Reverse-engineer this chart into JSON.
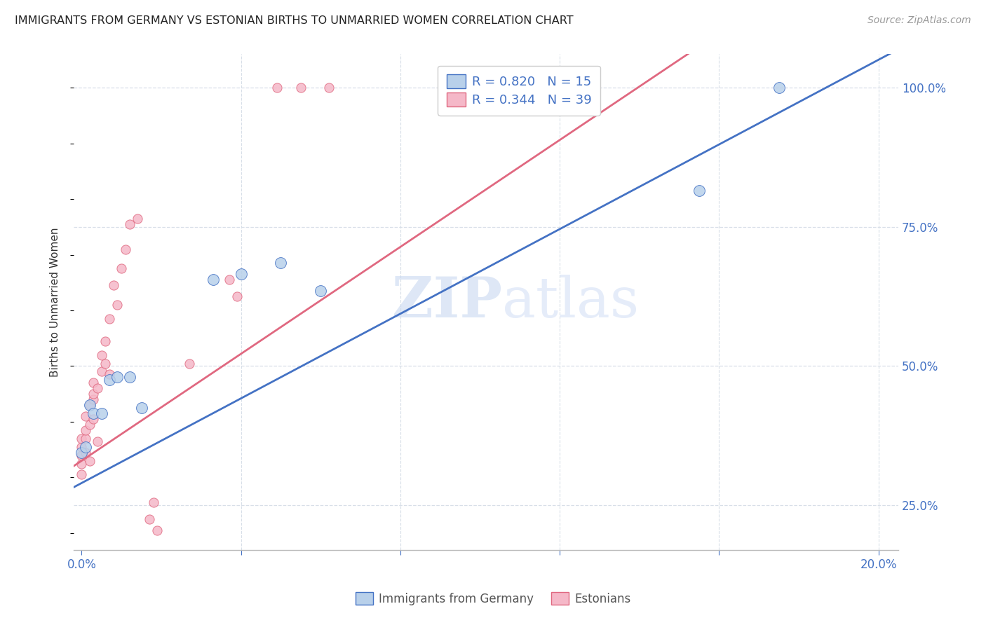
{
  "title": "IMMIGRANTS FROM GERMANY VS ESTONIAN BIRTHS TO UNMARRIED WOMEN CORRELATION CHART",
  "source": "Source: ZipAtlas.com",
  "ylabel": "Births to Unmarried Women",
  "background_color": "#ffffff",
  "watermark_text": "ZIPatlas",
  "blue_R": "R = 0.820",
  "blue_N": "N = 15",
  "pink_R": "R = 0.344",
  "pink_N": "N = 39",
  "xlim": [
    -0.002,
    0.205
  ],
  "ylim": [
    0.17,
    1.06
  ],
  "blue_x": [
    0.0,
    0.001,
    0.002,
    0.003,
    0.005,
    0.007,
    0.009,
    0.012,
    0.015,
    0.033,
    0.04,
    0.05,
    0.06,
    0.155,
    0.175
  ],
  "blue_y": [
    0.345,
    0.355,
    0.43,
    0.415,
    0.415,
    0.475,
    0.48,
    0.48,
    0.425,
    0.655,
    0.665,
    0.685,
    0.635,
    0.815,
    1.0
  ],
  "pink_x": [
    0.0,
    0.0,
    0.0,
    0.0,
    0.0,
    0.001,
    0.001,
    0.001,
    0.001,
    0.002,
    0.002,
    0.002,
    0.003,
    0.003,
    0.003,
    0.003,
    0.004,
    0.004,
    0.005,
    0.005,
    0.006,
    0.006,
    0.007,
    0.007,
    0.008,
    0.009,
    0.01,
    0.011,
    0.012,
    0.014,
    0.017,
    0.018,
    0.019,
    0.027,
    0.037,
    0.039,
    0.049,
    0.055,
    0.062
  ],
  "pink_y": [
    0.305,
    0.325,
    0.34,
    0.355,
    0.37,
    0.345,
    0.37,
    0.385,
    0.41,
    0.33,
    0.395,
    0.43,
    0.44,
    0.405,
    0.45,
    0.47,
    0.365,
    0.46,
    0.49,
    0.52,
    0.505,
    0.545,
    0.485,
    0.585,
    0.645,
    0.61,
    0.675,
    0.71,
    0.755,
    0.765,
    0.225,
    0.255,
    0.205,
    0.505,
    0.655,
    0.625,
    1.0,
    1.0,
    1.0
  ],
  "blue_line_intercept": 0.29,
  "blue_line_slope": 3.8,
  "pink_line_intercept": 0.33,
  "pink_line_slope": 4.8,
  "dot_size_blue": 130,
  "dot_size_pink": 90,
  "blue_color": "#b8d0ea",
  "pink_color": "#f5b8c8",
  "blue_line_color": "#4472c4",
  "pink_line_color": "#e06880",
  "grid_color": "#d8dfe8",
  "axis_color": "#4472c4",
  "y_ticks": [
    0.25,
    0.5,
    0.75,
    1.0
  ],
  "y_tick_labels": [
    "25.0%",
    "50.0%",
    "75.0%",
    "100.0%"
  ],
  "x_ticks": [
    0.0,
    0.04,
    0.08,
    0.12,
    0.16,
    0.2
  ],
  "x_tick_labels": [
    "0.0%",
    "",
    "",
    "",
    "",
    "20.0%"
  ]
}
